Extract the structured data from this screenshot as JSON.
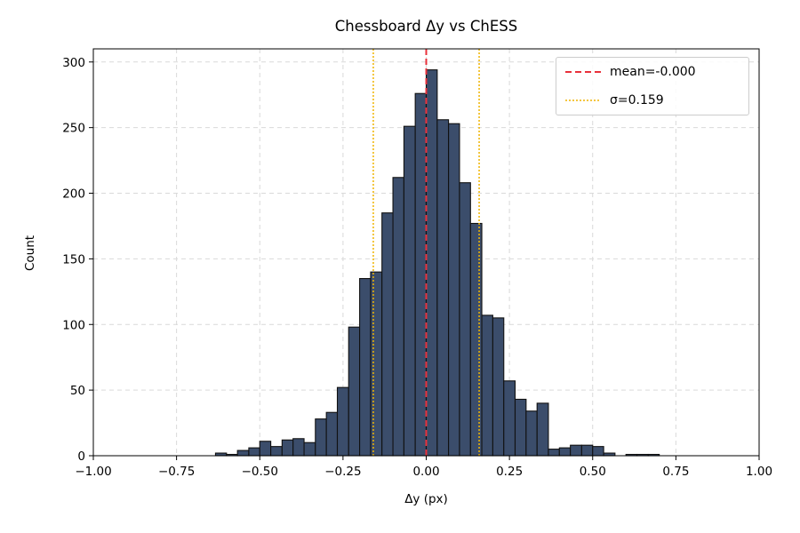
{
  "chart_data": {
    "type": "bar",
    "title": "Chessboard Δy vs ChESS",
    "xlabel": "Δy (px)",
    "ylabel": "Count",
    "xlim": [
      -1.0,
      1.0
    ],
    "ylim": [
      0,
      310
    ],
    "xticks": [
      -1.0,
      -0.75,
      -0.5,
      -0.25,
      0.0,
      0.25,
      0.5,
      0.75,
      1.0
    ],
    "xtick_labels": [
      "−1.00",
      "−0.75",
      "−0.50",
      "−0.25",
      "0.00",
      "0.25",
      "0.50",
      "0.75",
      "1.00"
    ],
    "yticks": [
      0,
      50,
      100,
      150,
      200,
      250,
      300
    ],
    "ytick_labels": [
      "0",
      "50",
      "100",
      "150",
      "200",
      "250",
      "300"
    ],
    "grid": true,
    "legend_position": "top-right",
    "bin_edges": [
      -0.633,
      -0.6,
      -0.567,
      -0.533,
      -0.5,
      -0.467,
      -0.433,
      -0.4,
      -0.367,
      -0.333,
      -0.3,
      -0.267,
      -0.233,
      -0.2,
      -0.167,
      -0.133,
      -0.1,
      -0.067,
      -0.033,
      0.0,
      0.033,
      0.067,
      0.1,
      0.133,
      0.167,
      0.2,
      0.233,
      0.267,
      0.3,
      0.333,
      0.367,
      0.4,
      0.433,
      0.467,
      0.5,
      0.533,
      0.567,
      0.6,
      0.633,
      0.667,
      0.7
    ],
    "counts": [
      2,
      1,
      4,
      6,
      11,
      7,
      12,
      13,
      10,
      28,
      33,
      52,
      98,
      135,
      140,
      185,
      212,
      251,
      276,
      294,
      256,
      253,
      208,
      177,
      107,
      105,
      57,
      43,
      34,
      40,
      5,
      6,
      8,
      8,
      7,
      2,
      0,
      1,
      1,
      1
    ],
    "bar_color": "#3b4d6b",
    "bar_edge_color": "#111111",
    "series": [
      {
        "name": "mean=-0.000",
        "type": "vline",
        "x": 0.0,
        "color": "#e8303a",
        "style": "dashed"
      },
      {
        "name": "σ=0.159",
        "type": "vline",
        "x": [
          -0.159,
          0.159
        ],
        "color": "#f0b400",
        "style": "dotted"
      }
    ]
  }
}
